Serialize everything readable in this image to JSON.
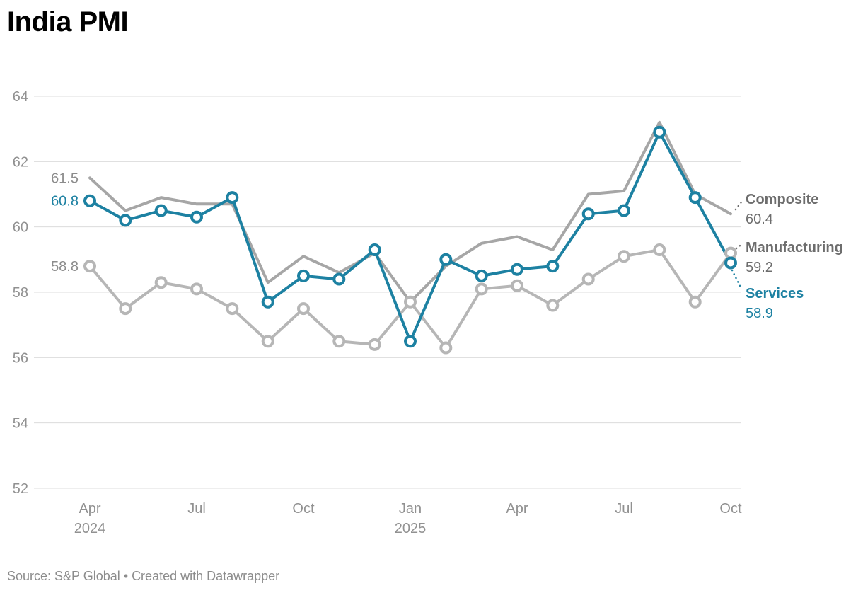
{
  "title": "India PMI",
  "source_note": "Source: S&P Global • Created with Datawrapper",
  "colors": {
    "services_blue": "#1d81a2",
    "composite_gray": "#a6a6a6",
    "manufacturing_gray": "#b6b6b6",
    "grid_line": "#dcdcdc",
    "axis_label": "#919191",
    "direct_label_gray": "#6d6d6d",
    "start_label_gray": "#8c8c8c",
    "marker_fill": "#ffffff",
    "title_color": "#000000",
    "footer_color": "#8c8c8c"
  },
  "chart_data": {
    "type": "line",
    "title": "India PMI",
    "xlabel": "",
    "ylabel": "",
    "ylim": [
      52,
      64
    ],
    "yticks": [
      52,
      54,
      56,
      58,
      60,
      62,
      64
    ],
    "grid": "horizontal",
    "legend_position": "direct-labels-right",
    "x": [
      "Apr 2024",
      "May 2024",
      "Jun 2024",
      "Jul 2024",
      "Aug 2024",
      "Sep 2024",
      "Oct 2024",
      "Nov 2024",
      "Dec 2024",
      "Jan 2025",
      "Feb 2025",
      "Mar 2025",
      "Apr 2025",
      "May 2025",
      "Jun 2025",
      "Jul 2025",
      "Aug 2025",
      "Sep 2025",
      "Oct 2025"
    ],
    "xticks": [
      {
        "i": 0,
        "label": "Apr",
        "year": "2024"
      },
      {
        "i": 3,
        "label": "Jul"
      },
      {
        "i": 6,
        "label": "Oct"
      },
      {
        "i": 9,
        "label": "Jan",
        "year": "2025"
      },
      {
        "i": 12,
        "label": "Apr"
      },
      {
        "i": 15,
        "label": "Jul"
      },
      {
        "i": 18,
        "label": "Oct"
      }
    ],
    "series": [
      {
        "name": "Composite",
        "values": [
          61.5,
          60.5,
          60.9,
          60.7,
          60.7,
          58.3,
          59.1,
          58.6,
          59.2,
          57.7,
          58.8,
          59.5,
          59.7,
          59.3,
          61.0,
          61.1,
          63.2,
          61.0,
          60.4
        ],
        "markers": false,
        "color_key": "composite_gray",
        "label_color_key": "direct_label_gray",
        "start_label": "61.5",
        "start_label_color_key": "start_label_gray",
        "end_label": "60.4"
      },
      {
        "name": "Manufacturing",
        "values": [
          58.8,
          57.5,
          58.3,
          58.1,
          57.5,
          56.5,
          57.5,
          56.5,
          56.4,
          57.7,
          56.3,
          58.1,
          58.2,
          57.6,
          58.4,
          59.1,
          59.3,
          57.7,
          59.2
        ],
        "markers": true,
        "color_key": "manufacturing_gray",
        "label_color_key": "direct_label_gray",
        "start_label": "58.8",
        "start_label_color_key": "start_label_gray",
        "end_label": "59.2"
      },
      {
        "name": "Services",
        "values": [
          60.8,
          60.2,
          60.5,
          60.3,
          60.9,
          57.7,
          58.5,
          58.4,
          59.3,
          56.5,
          59.0,
          58.5,
          58.7,
          58.8,
          60.4,
          60.5,
          62.9,
          60.9,
          58.9
        ],
        "markers": true,
        "color_key": "services_blue",
        "label_color_key": "services_blue",
        "start_label": "60.8",
        "start_label_color_key": "services_blue",
        "end_label": "58.9"
      }
    ]
  }
}
